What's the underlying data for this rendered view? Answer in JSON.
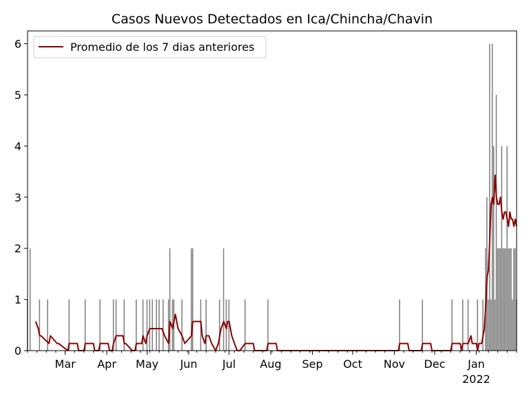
{
  "chart_data": {
    "type": "bar",
    "title": "Casos Nuevos Detectados en Ica/Chincha/Chavin",
    "xlabel": "",
    "ylabel": "",
    "xlim": [
      "2021-02-01",
      "2022-01-31"
    ],
    "ylim": [
      0,
      6.25
    ],
    "grid": false,
    "legend_placement": "top-left",
    "y_ticks": [
      0,
      1,
      2,
      3,
      4,
      5,
      6
    ],
    "x_ticks": [
      {
        "date": "2021-03-01",
        "label": "Mar",
        "sub": ""
      },
      {
        "date": "2021-04-01",
        "label": "Apr",
        "sub": ""
      },
      {
        "date": "2021-05-01",
        "label": "May",
        "sub": ""
      },
      {
        "date": "2021-06-01",
        "label": "Jun",
        "sub": ""
      },
      {
        "date": "2021-07-01",
        "label": "Jul",
        "sub": ""
      },
      {
        "date": "2021-08-01",
        "label": "Aug",
        "sub": ""
      },
      {
        "date": "2021-09-01",
        "label": "Sep",
        "sub": ""
      },
      {
        "date": "2021-10-01",
        "label": "Oct",
        "sub": ""
      },
      {
        "date": "2021-11-01",
        "label": "Nov",
        "sub": ""
      },
      {
        "date": "2021-12-01",
        "label": "Dec",
        "sub": ""
      },
      {
        "date": "2022-01-01",
        "label": "Jan",
        "sub": "2022"
      }
    ],
    "colors": {
      "bars": "#808080",
      "line": "#8b0000"
    },
    "series": [
      {
        "kind": "bar",
        "x": [
          "2021-02-01",
          "2021-02-03",
          "2021-02-10",
          "2021-02-16",
          "2021-03-04",
          "2021-03-16",
          "2021-03-27",
          "2021-04-06",
          "2021-04-08",
          "2021-04-14",
          "2021-04-23",
          "2021-04-28",
          "2021-05-01",
          "2021-05-03",
          "2021-05-05",
          "2021-05-08",
          "2021-05-10",
          "2021-05-13",
          "2021-05-17",
          "2021-05-18",
          "2021-05-20",
          "2021-05-21",
          "2021-05-27",
          "2021-06-03",
          "2021-06-04",
          "2021-06-10",
          "2021-06-14",
          "2021-06-24",
          "2021-06-27",
          "2021-06-29",
          "2021-07-01",
          "2021-07-13",
          "2021-07-30",
          "2021-11-05",
          "2021-11-22",
          "2021-12-14",
          "2021-12-22",
          "2021-12-26",
          "2022-01-02",
          "2022-01-06",
          "2022-01-08",
          "2022-01-09",
          "2022-01-10",
          "2022-01-11",
          "2022-01-12",
          "2022-01-13",
          "2022-01-14",
          "2022-01-15",
          "2022-01-16",
          "2022-01-17",
          "2022-01-18",
          "2022-01-19",
          "2022-01-20",
          "2022-01-21",
          "2022-01-22",
          "2022-01-23",
          "2022-01-24",
          "2022-01-25",
          "2022-01-26",
          "2022-01-27",
          "2022-01-28",
          "2022-01-29",
          "2022-01-30",
          "2022-01-31"
        ],
        "values": [
          1,
          2,
          1,
          1,
          1,
          1,
          1,
          1,
          1,
          1,
          1,
          1,
          1,
          1,
          1,
          1,
          1,
          1,
          1,
          2,
          1,
          1,
          1,
          2,
          2,
          1,
          1,
          1,
          2,
          1,
          1,
          1,
          1,
          1,
          1,
          1,
          1,
          1,
          1,
          1,
          2,
          3,
          1,
          6,
          1,
          6,
          4,
          1,
          5,
          2,
          2,
          2,
          4,
          2,
          2,
          2,
          4,
          2,
          2,
          2,
          1,
          2,
          2,
          1
        ]
      },
      {
        "kind": "line",
        "name": "Promedio de los 7 dias anteriores",
        "x": [
          "2021-02-07",
          "2021-02-09",
          "2021-02-10",
          "2021-02-11",
          "2021-02-17",
          "2021-02-18",
          "2021-02-23",
          "2021-02-24",
          "2021-03-03",
          "2021-03-04",
          "2021-03-10",
          "2021-03-11",
          "2021-03-15",
          "2021-03-16",
          "2021-03-22",
          "2021-03-23",
          "2021-03-26",
          "2021-03-27",
          "2021-04-02",
          "2021-04-03",
          "2021-04-05",
          "2021-04-06",
          "2021-04-08",
          "2021-04-13",
          "2021-04-14",
          "2021-04-15",
          "2021-04-20",
          "2021-04-22",
          "2021-04-23",
          "2021-04-27",
          "2021-04-28",
          "2021-04-30",
          "2021-05-01",
          "2021-05-03",
          "2021-05-05",
          "2021-05-07",
          "2021-05-10",
          "2021-05-12",
          "2021-05-14",
          "2021-05-17",
          "2021-05-18",
          "2021-05-20",
          "2021-05-22",
          "2021-05-24",
          "2021-05-27",
          "2021-05-29",
          "2021-06-03",
          "2021-06-04",
          "2021-06-10",
          "2021-06-11",
          "2021-06-13",
          "2021-06-14",
          "2021-06-16",
          "2021-06-18",
          "2021-06-21",
          "2021-06-23",
          "2021-06-25",
          "2021-06-27",
          "2021-06-29",
          "2021-06-30",
          "2021-07-01",
          "2021-07-03",
          "2021-07-05",
          "2021-07-07",
          "2021-07-09",
          "2021-07-13",
          "2021-07-19",
          "2021-07-20",
          "2021-07-29",
          "2021-07-30",
          "2021-08-05",
          "2021-08-06",
          "2021-11-04",
          "2021-11-05",
          "2021-11-11",
          "2021-11-12",
          "2021-11-21",
          "2021-11-22",
          "2021-11-28",
          "2021-11-29",
          "2021-12-13",
          "2021-12-14",
          "2021-12-20",
          "2021-12-21",
          "2021-12-22",
          "2021-12-26",
          "2021-12-28",
          "2021-12-29",
          "2022-01-01",
          "2022-01-02",
          "2022-01-03",
          "2022-01-05",
          "2022-01-07",
          "2022-01-08",
          "2022-01-09",
          "2022-01-10",
          "2022-01-11",
          "2022-01-12",
          "2022-01-13",
          "2022-01-14",
          "2022-01-15",
          "2022-01-16",
          "2022-01-17",
          "2022-01-18",
          "2022-01-19",
          "2022-01-20",
          "2022-01-21",
          "2022-01-22",
          "2022-01-23",
          "2022-01-24",
          "2022-01-25",
          "2022-01-26",
          "2022-01-27",
          "2022-01-28",
          "2022-01-29",
          "2022-01-30",
          "2022-01-31"
        ],
        "values": [
          0.57,
          0.43,
          0.29,
          0.29,
          0.14,
          0.29,
          0.14,
          0.14,
          0.0,
          0.14,
          0.14,
          0.0,
          0.0,
          0.14,
          0.14,
          0.0,
          0.0,
          0.14,
          0.14,
          0.0,
          0.0,
          0.14,
          0.29,
          0.29,
          0.14,
          0.14,
          0.0,
          0.0,
          0.14,
          0.14,
          0.29,
          0.14,
          0.29,
          0.43,
          0.43,
          0.43,
          0.43,
          0.43,
          0.29,
          0.14,
          0.57,
          0.43,
          0.71,
          0.43,
          0.29,
          0.14,
          0.29,
          0.57,
          0.57,
          0.29,
          0.14,
          0.29,
          0.29,
          0.14,
          0.0,
          0.14,
          0.43,
          0.57,
          0.43,
          0.57,
          0.57,
          0.29,
          0.14,
          0.0,
          0.0,
          0.14,
          0.14,
          0.0,
          0.0,
          0.14,
          0.14,
          0.0,
          0.0,
          0.14,
          0.14,
          0.0,
          0.0,
          0.14,
          0.14,
          0.0,
          0.0,
          0.14,
          0.14,
          0.0,
          0.14,
          0.14,
          0.29,
          0.14,
          0.14,
          0.0,
          0.14,
          0.14,
          0.43,
          0.86,
          1.43,
          1.57,
          2.14,
          2.86,
          3.0,
          2.86,
          3.43,
          3.0,
          2.86,
          2.86,
          3.0,
          2.71,
          2.57,
          2.71,
          2.71,
          2.57,
          2.43,
          2.71,
          2.57,
          2.57,
          2.43,
          2.57,
          2.43
        ]
      }
    ]
  }
}
